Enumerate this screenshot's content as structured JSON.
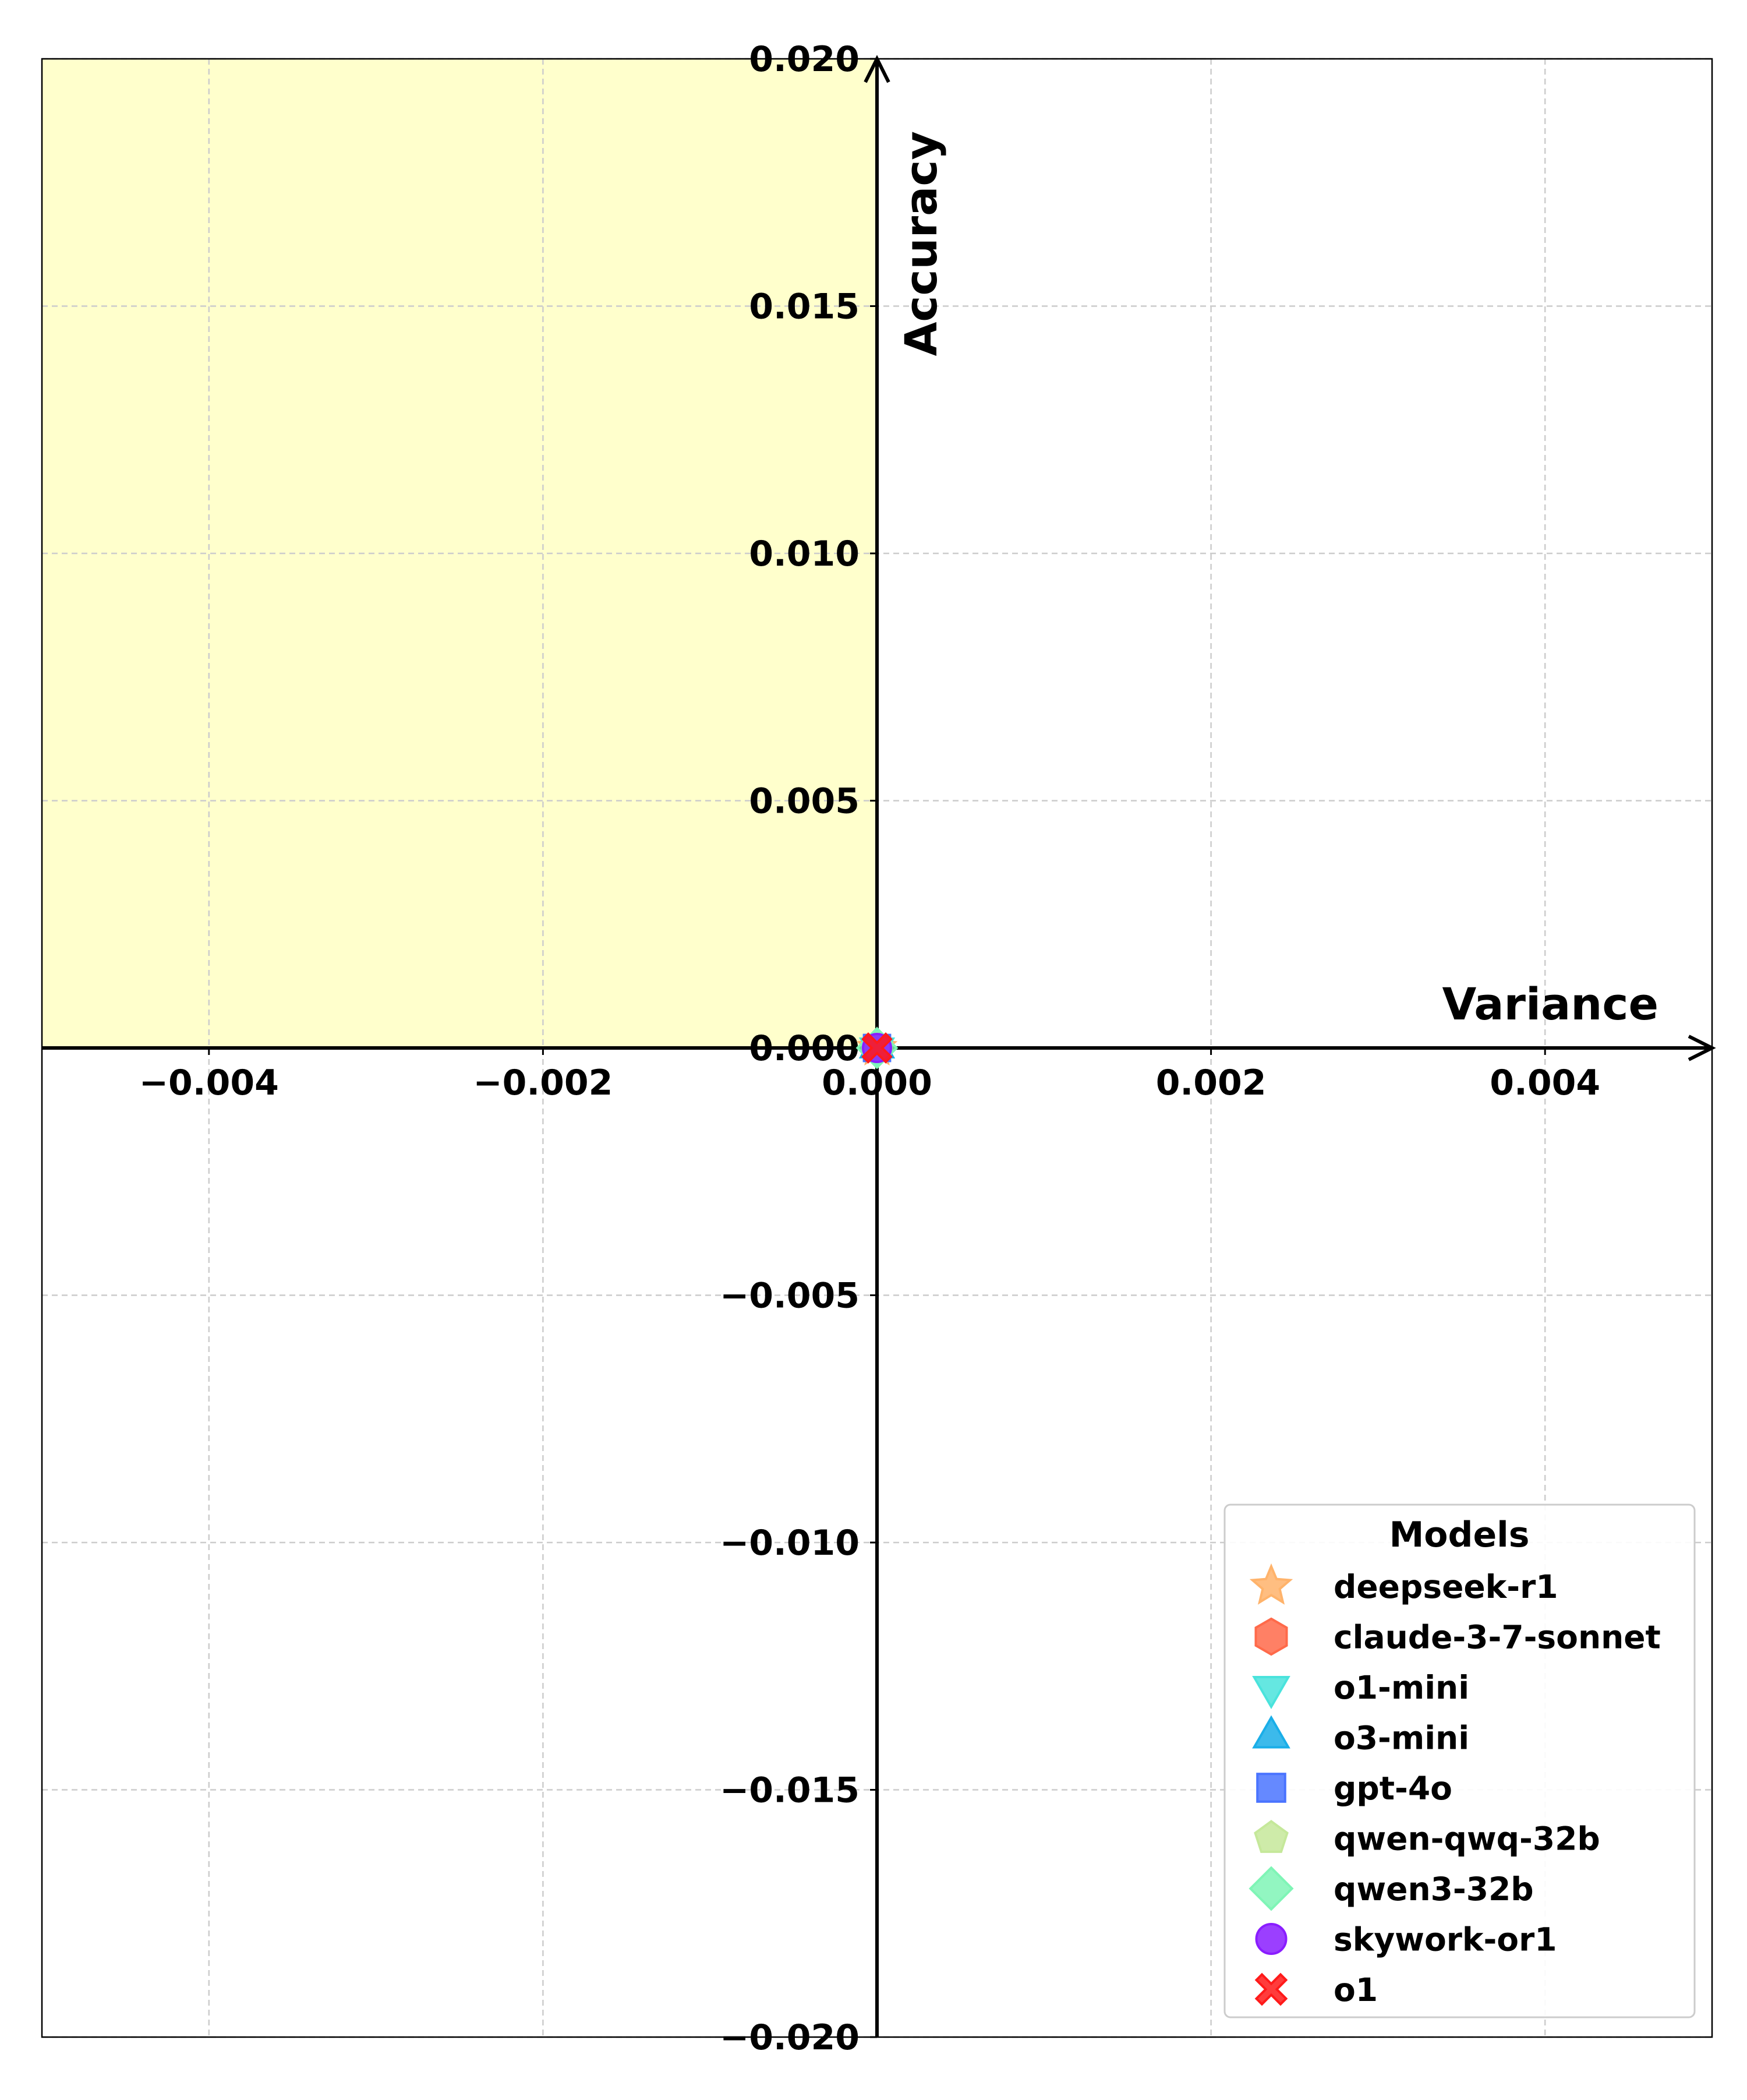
{
  "chart_data": {
    "type": "scatter",
    "xlabel": "Variance",
    "ylabel": "Accuracy",
    "xlim": [
      -0.005,
      0.005
    ],
    "ylim": [
      -0.02,
      0.02
    ],
    "x_ticks": [
      -0.004,
      -0.002,
      0.0,
      0.002,
      0.004
    ],
    "x_tick_labels": [
      "−0.004",
      "−0.002",
      "0.000",
      "0.002",
      "0.004"
    ],
    "y_ticks": [
      0.02,
      0.015,
      0.01,
      0.005,
      0.0,
      -0.005,
      -0.01,
      -0.015,
      -0.02
    ],
    "y_tick_labels": [
      "0.020",
      "0.015",
      "0.010",
      "0.005",
      "0.000",
      "−0.005",
      "−0.010",
      "−0.015",
      "−0.020"
    ],
    "grid": true,
    "highlight_region": {
      "x": [
        -0.005,
        0.0
      ],
      "y": [
        0.0,
        0.02
      ],
      "color": "#ffffcc"
    },
    "legend": {
      "title": "Models",
      "placement": "lower-right"
    },
    "series": [
      {
        "name": "deepseek-r1",
        "marker": "star",
        "color": "#ffb36b",
        "x": [
          0.0
        ],
        "y": [
          0.0
        ]
      },
      {
        "name": "claude-3-7-sonnet",
        "marker": "hexagon",
        "color": "#ff6a4a",
        "x": [
          0.0
        ],
        "y": [
          0.0
        ]
      },
      {
        "name": "o1-mini",
        "marker": "triangle-down",
        "color": "#4ae3dc",
        "x": [
          0.0
        ],
        "y": [
          0.0
        ]
      },
      {
        "name": "o3-mini",
        "marker": "triangle-up",
        "color": "#1aaee8",
        "x": [
          0.0
        ],
        "y": [
          0.0
        ]
      },
      {
        "name": "gpt-4o",
        "marker": "square",
        "color": "#4a74ff",
        "x": [
          0.0
        ],
        "y": [
          0.0
        ]
      },
      {
        "name": "qwen-qwq-32b",
        "marker": "pentagon",
        "color": "#c5e89a",
        "x": [
          0.0
        ],
        "y": [
          0.0
        ]
      },
      {
        "name": "qwen3-32b",
        "marker": "diamond",
        "color": "#7ff5b6",
        "x": [
          0.0
        ],
        "y": [
          0.0
        ]
      },
      {
        "name": "skywork-or1",
        "marker": "circle",
        "color": "#8a1dff",
        "x": [
          0.0
        ],
        "y": [
          0.0
        ]
      },
      {
        "name": "o1",
        "marker": "x",
        "color": "#ff1a1a",
        "x": [
          0.0
        ],
        "y": [
          0.0
        ]
      }
    ]
  }
}
